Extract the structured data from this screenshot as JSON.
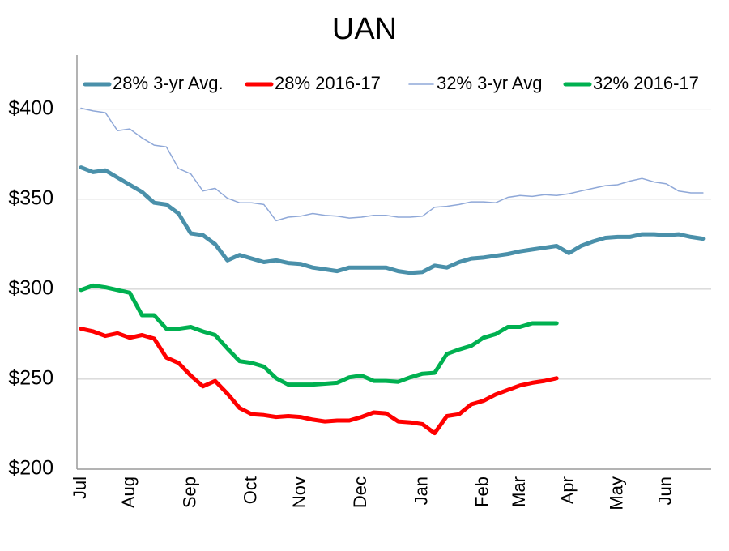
{
  "chart_data": {
    "type": "line",
    "title": "UAN",
    "categories": [
      "Jul",
      null,
      null,
      null,
      "Aug",
      null,
      null,
      null,
      null,
      "Sep",
      null,
      null,
      null,
      null,
      "Oct",
      null,
      null,
      null,
      "Nov",
      null,
      null,
      null,
      null,
      "Dec",
      null,
      null,
      null,
      null,
      "Jan",
      null,
      null,
      null,
      null,
      "Feb",
      null,
      null,
      "Mar",
      null,
      null,
      null,
      "Apr",
      null,
      null,
      null,
      "May",
      null,
      null,
      null,
      "Jun",
      null,
      null,
      null
    ],
    "series": [
      {
        "name": "28% 3-yr Avg.",
        "color": "#4a90aa",
        "values": [
          367.6,
          365,
          366,
          362,
          358,
          354,
          348,
          347,
          342,
          331,
          330,
          325,
          316,
          319,
          317,
          315,
          316,
          314.5,
          314,
          312,
          311,
          310,
          312,
          312,
          312,
          312,
          310,
          309,
          309.5,
          313,
          312,
          315,
          317,
          317.5,
          318.5,
          319.5,
          321,
          322,
          323,
          324,
          320,
          324,
          326.5,
          328.5,
          329,
          329,
          330.5,
          330.5,
          330,
          330.5,
          329,
          328
        ]
      },
      {
        "name": "28% 2016-17",
        "color": "#ff0000",
        "values": [
          278,
          276.5,
          274,
          275.5,
          273,
          274.5,
          272.5,
          262,
          259,
          252,
          246,
          249,
          242,
          234,
          230.5,
          230,
          229,
          229.5,
          229,
          227.5,
          226.5,
          227,
          227,
          229,
          231.5,
          231,
          226.5,
          226,
          225,
          220,
          229.5,
          230.5,
          236,
          238,
          241.5,
          244,
          246.5,
          248,
          249,
          250.5,
          null,
          null,
          null,
          null,
          null,
          null,
          null,
          null,
          null,
          null,
          null,
          null
        ]
      },
      {
        "name": "32% 3-yr Avg",
        "color": "#8fa8d8",
        "values": [
          400.5,
          399,
          398,
          388,
          389,
          384,
          380,
          379,
          367,
          364,
          354.5,
          356,
          350.5,
          348,
          348,
          347,
          338,
          340,
          340.5,
          342,
          341,
          340.5,
          339.5,
          340,
          341,
          341,
          340,
          340,
          340.5,
          345.5,
          346,
          347,
          348.5,
          348.5,
          348,
          351,
          352,
          351.5,
          352.5,
          352,
          353,
          354.5,
          356,
          357.5,
          358,
          360,
          361.5,
          359.5,
          358.5,
          354.5,
          353.5,
          353.5
        ]
      },
      {
        "name": "32% 2016-17",
        "color": "#00b050",
        "values": [
          299.5,
          302,
          301,
          299.5,
          298,
          285.5,
          285.5,
          278,
          278,
          279,
          276.5,
          274.5,
          267,
          260,
          259,
          257,
          250.5,
          247,
          247,
          247,
          247.5,
          248,
          251,
          252,
          249,
          249,
          248.5,
          251,
          253,
          253.5,
          264,
          266.5,
          268.5,
          273,
          275,
          279,
          279,
          281,
          281,
          281,
          null,
          null,
          null,
          null,
          null,
          null,
          null,
          null,
          null,
          null,
          null,
          null
        ]
      }
    ],
    "ylim": [
      200,
      430
    ],
    "yticks": [
      {
        "value": 200,
        "label": "$200"
      },
      {
        "value": 250,
        "label": "$250"
      },
      {
        "value": 300,
        "label": "$300"
      },
      {
        "value": 350,
        "label": "$350"
      },
      {
        "value": 400,
        "label": "$400"
      }
    ],
    "grid": true,
    "legend": "top"
  }
}
